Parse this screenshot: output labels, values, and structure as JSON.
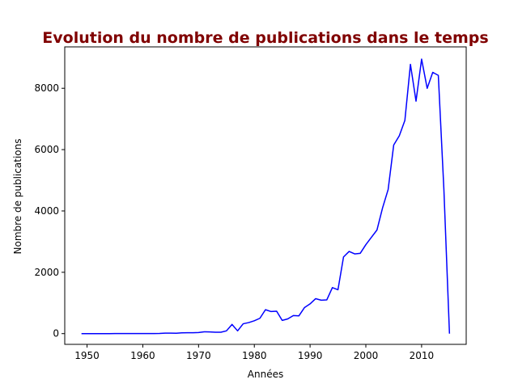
{
  "chart_data": {
    "type": "line",
    "title": "Evolution du nombre de publications dans le temps",
    "xlabel": "Années",
    "ylabel": "Nombre de publications",
    "xlim": [
      1946,
      2018
    ],
    "ylim": [
      -350,
      9350
    ],
    "xticks": [
      1950,
      1960,
      1970,
      1980,
      1990,
      2000,
      2010
    ],
    "yticks": [
      0,
      2000,
      4000,
      6000,
      8000
    ],
    "grid": false,
    "colors": {
      "line": "#0000ff",
      "title": "#800000",
      "axis": "#000000"
    },
    "series": [
      {
        "name": "publications",
        "x": [
          1949,
          1950,
          1951,
          1952,
          1953,
          1954,
          1955,
          1956,
          1957,
          1958,
          1959,
          1960,
          1961,
          1962,
          1963,
          1964,
          1965,
          1966,
          1967,
          1968,
          1969,
          1970,
          1971,
          1972,
          1973,
          1974,
          1975,
          1976,
          1977,
          1978,
          1979,
          1980,
          1981,
          1982,
          1983,
          1984,
          1985,
          1986,
          1987,
          1988,
          1989,
          1990,
          1991,
          1992,
          1993,
          1994,
          1995,
          1996,
          1997,
          1998,
          1999,
          2000,
          2001,
          2002,
          2003,
          2004,
          2005,
          2006,
          2007,
          2008,
          2009,
          2010,
          2011,
          2012,
          2013,
          2014,
          2015
        ],
        "values": [
          0,
          0,
          0,
          0,
          0,
          0,
          2,
          2,
          2,
          2,
          2,
          2,
          2,
          2,
          5,
          15,
          15,
          12,
          25,
          28,
          30,
          35,
          60,
          55,
          45,
          45,
          90,
          300,
          90,
          320,
          360,
          420,
          500,
          780,
          720,
          730,
          430,
          480,
          590,
          580,
          850,
          970,
          1140,
          1090,
          1100,
          1500,
          1430,
          2500,
          2680,
          2600,
          2620,
          2900,
          3140,
          3380,
          4100,
          4700,
          6150,
          6450,
          6950,
          8780,
          7580,
          8950,
          8000,
          8520,
          8420,
          4700,
          0
        ]
      }
    ]
  }
}
